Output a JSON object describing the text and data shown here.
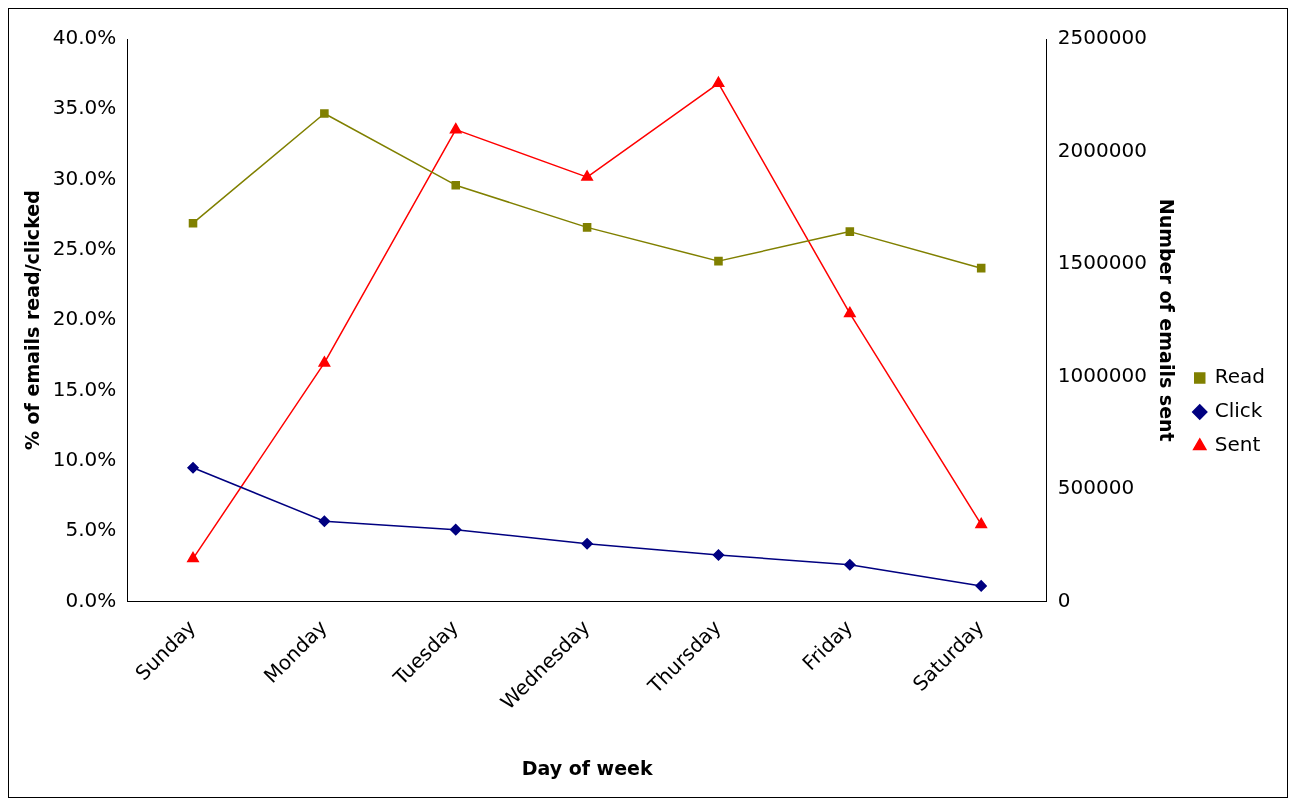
{
  "chart_data": {
    "type": "line",
    "xlabel": "Day of week",
    "ylabel": "% of emails read/clicked",
    "y2label": "Number of emails sent",
    "categories": [
      "Sunday",
      "Monday",
      "Tuesday",
      "Wednesday",
      "Thursday",
      "Friday",
      "Saturday"
    ],
    "series": [
      {
        "name": "Read",
        "color": "#808000",
        "marker": "square",
        "values": [
          26.9,
          34.7,
          29.6,
          26.6,
          24.2,
          26.3,
          23.7
        ]
      },
      {
        "name": "Click",
        "color": "#000080",
        "marker": "diamond",
        "values": [
          9.5,
          5.7,
          5.1,
          4.1,
          3.3,
          2.6,
          1.1
        ]
      },
      {
        "name": "Sent",
        "color": "#ff0000",
        "marker": "triangle",
        "axis": "y2",
        "values": [
          190000,
          1060000,
          2097000,
          1886000,
          2303000,
          1280000,
          342000
        ]
      }
    ],
    "ylim": [
      0,
      40
    ],
    "yticks": [
      {
        "value": 0,
        "label": "0.0%"
      },
      {
        "value": 5,
        "label": "5.0%"
      },
      {
        "value": 10,
        "label": "10.0%"
      },
      {
        "value": 15,
        "label": "15.0%"
      },
      {
        "value": 20,
        "label": "20.0%"
      },
      {
        "value": 25,
        "label": "25.0%"
      },
      {
        "value": 30,
        "label": "30.0%"
      },
      {
        "value": 35,
        "label": "35.0%"
      },
      {
        "value": 40,
        "label": "40.0%"
      }
    ],
    "y2lim": [
      0,
      2500000
    ],
    "y2ticks": [
      0,
      500000,
      1000000,
      1500000,
      2000000,
      2500000
    ],
    "grid": false,
    "legend": "right",
    "line_style": "solid"
  }
}
